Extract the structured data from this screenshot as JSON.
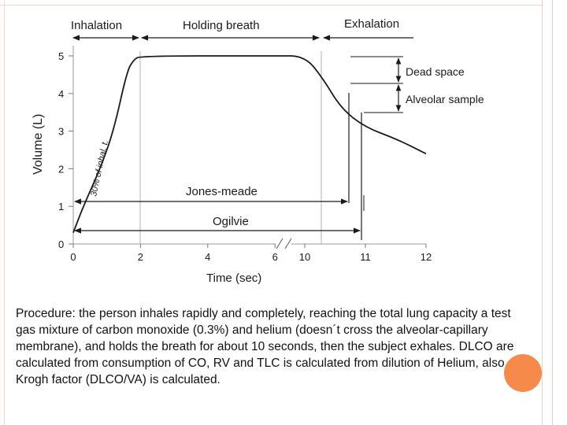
{
  "colors": {
    "accent": "#f58a4b",
    "border": "#f0cdbd",
    "curve": "#1a1a1a"
  },
  "caption": "Procedure: the person inhales rapidly and completely, reaching the total lung capacity a test gas mixture of carbon monoxide (0.3%) and helium (doesn´t cross the alveolar-capillary membrane), and holds the breath for about 10 seconds, then the subject exhales. DLCO are calculated from consumption of CO, RV and TLC is calculated from dilution of Helium, also Krogh factor  (DLCO/VA) is calculated.",
  "chart_data": {
    "type": "line",
    "xlabel": "Time (sec)",
    "ylabel": "Volume (L)",
    "ylim": [
      0,
      5
    ],
    "yticks": [
      "0",
      "1",
      "2",
      "3",
      "4",
      "5"
    ],
    "xticks": [
      "0",
      "2",
      "4",
      "6",
      "10",
      "11",
      "12"
    ],
    "axis_break": "//",
    "series": [
      {
        "x": [
          0,
          0.3,
          0.8,
          1.2,
          1.6,
          1.8,
          2.0,
          6.0,
          10.0,
          10.3,
          10.6,
          11.0,
          11.5,
          12.0
        ],
        "y": [
          0.3,
          1.0,
          2.0,
          3.0,
          4.6,
          4.9,
          5.0,
          5.0,
          5.0,
          4.4,
          3.6,
          3.1,
          2.8,
          2.4
        ]
      }
    ],
    "phases": [
      "Inhalation",
      "Holding breath",
      "Exhalation"
    ],
    "annotations": {
      "dead_space": "Dead space",
      "alveolar_sample": "Alveolar sample",
      "jones_meade": "Jones-meade",
      "ogilvie": "Ogilvie",
      "inhal_note": "30% of inhal. t."
    }
  }
}
